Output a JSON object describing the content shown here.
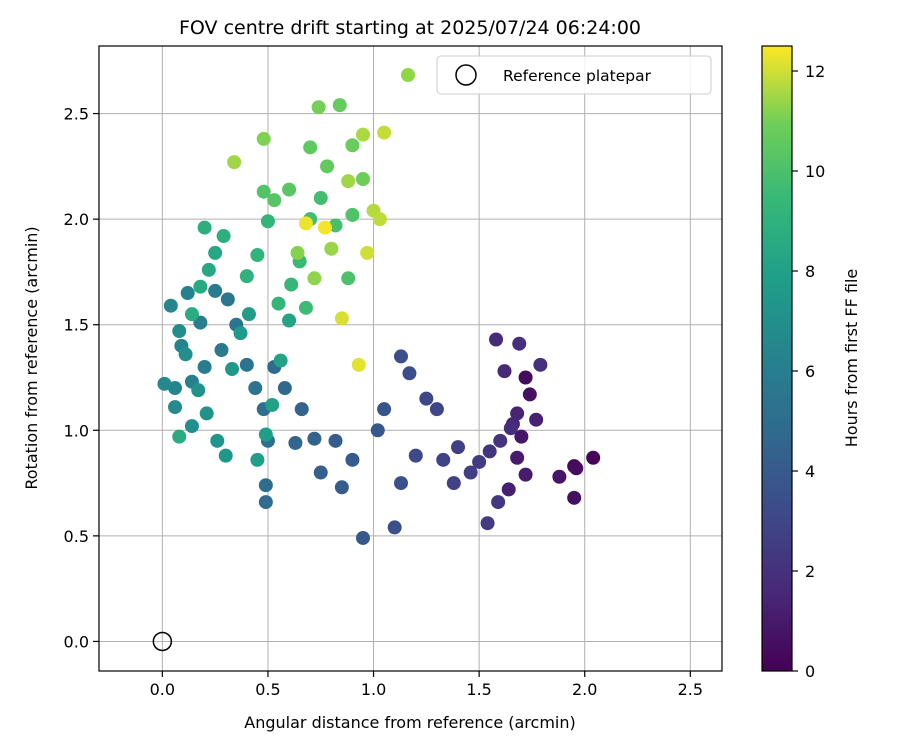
{
  "chart_data": {
    "type": "scatter",
    "title": "FOV centre drift starting at 2025/07/24 06:24:00",
    "xlabel": "Angular distance from reference (arcmin)",
    "ylabel": "Rotation from reference (arcmin)",
    "xlim": [
      -0.3,
      2.65
    ],
    "ylim": [
      -0.14,
      2.82
    ],
    "x_ticks": [
      "0.0",
      "0.5",
      "1.0",
      "1.5",
      "2.0",
      "2.5"
    ],
    "y_ticks": [
      "0.0",
      "0.5",
      "1.0",
      "1.5",
      "2.0",
      "2.5"
    ],
    "grid": true,
    "legend": {
      "placement": "top-right",
      "entries": [
        {
          "label": "",
          "marker": "filled-circle",
          "color": "#8fd744"
        },
        {
          "label": "Reference platepar",
          "marker": "open-circle",
          "color": "#000000"
        }
      ]
    },
    "colorbar": {
      "label": "Hours from first FF file",
      "colormap": "viridis",
      "range": [
        0,
        12.5
      ],
      "ticks": [
        "0",
        "2",
        "4",
        "6",
        "8",
        "10",
        "12"
      ]
    },
    "reference_point": {
      "x": 0.0,
      "y": 0.0
    },
    "series": [
      {
        "color_by": "hours",
        "points": [
          [
            2.04,
            0.87,
            0.2
          ],
          [
            1.95,
            0.83,
            0.3
          ],
          [
            1.96,
            0.82,
            0.5
          ],
          [
            1.95,
            0.68,
            0.6
          ],
          [
            1.88,
            0.78,
            0.8
          ],
          [
            1.72,
            1.25,
            0.4
          ],
          [
            1.74,
            1.17,
            0.7
          ],
          [
            1.7,
            0.97,
            0.9
          ],
          [
            1.68,
            0.87,
            1.0
          ],
          [
            1.72,
            0.79,
            1.1
          ],
          [
            1.64,
            0.72,
            1.2
          ],
          [
            1.77,
            1.05,
            1.3
          ],
          [
            1.68,
            1.08,
            1.4
          ],
          [
            1.66,
            1.03,
            1.5
          ],
          [
            1.62,
            1.28,
            1.6
          ],
          [
            1.58,
            1.43,
            1.7
          ],
          [
            1.65,
            1.01,
            1.8
          ],
          [
            1.69,
            1.41,
            1.9
          ],
          [
            1.79,
            1.31,
            2.0
          ],
          [
            1.6,
            0.95,
            2.1
          ],
          [
            1.55,
            0.9,
            2.2
          ],
          [
            1.59,
            0.66,
            2.3
          ],
          [
            1.54,
            0.56,
            2.4
          ],
          [
            1.5,
            0.85,
            2.5
          ],
          [
            1.46,
            0.8,
            2.6
          ],
          [
            1.4,
            0.92,
            2.7
          ],
          [
            1.38,
            0.75,
            2.8
          ],
          [
            1.33,
            0.86,
            2.9
          ],
          [
            1.3,
            1.1,
            3.0
          ],
          [
            1.25,
            1.15,
            3.1
          ],
          [
            1.2,
            0.88,
            3.2
          ],
          [
            1.17,
            1.27,
            3.3
          ],
          [
            1.13,
            1.35,
            3.4
          ],
          [
            1.1,
            0.54,
            3.5
          ],
          [
            1.13,
            0.75,
            3.6
          ],
          [
            1.05,
            1.1,
            3.7
          ],
          [
            1.02,
            1.0,
            3.8
          ],
          [
            0.95,
            0.49,
            3.9
          ],
          [
            0.9,
            0.86,
            4.0
          ],
          [
            0.85,
            0.73,
            4.1
          ],
          [
            0.82,
            0.95,
            4.2
          ],
          [
            0.75,
            0.8,
            4.3
          ],
          [
            0.72,
            0.96,
            4.4
          ],
          [
            0.66,
            1.1,
            4.5
          ],
          [
            0.63,
            0.94,
            4.6
          ],
          [
            0.58,
            1.2,
            4.7
          ],
          [
            0.53,
            1.3,
            4.8
          ],
          [
            0.49,
            0.66,
            4.9
          ],
          [
            0.49,
            0.74,
            5.0
          ],
          [
            0.5,
            0.95,
            5.1
          ],
          [
            0.48,
            1.1,
            5.2
          ],
          [
            0.44,
            1.2,
            5.3
          ],
          [
            0.4,
            1.31,
            5.4
          ],
          [
            0.35,
            1.5,
            5.5
          ],
          [
            0.31,
            1.62,
            5.6
          ],
          [
            0.28,
            1.38,
            5.7
          ],
          [
            0.25,
            1.66,
            5.8
          ],
          [
            0.2,
            1.3,
            5.9
          ],
          [
            0.18,
            1.51,
            6.0
          ],
          [
            0.14,
            1.23,
            6.1
          ],
          [
            0.12,
            1.65,
            6.2
          ],
          [
            0.09,
            1.4,
            6.3
          ],
          [
            0.06,
            1.2,
            6.4
          ],
          [
            0.04,
            1.59,
            6.5
          ],
          [
            0.01,
            1.22,
            6.6
          ],
          [
            0.06,
            1.11,
            6.7
          ],
          [
            0.08,
            1.47,
            6.8
          ],
          [
            0.11,
            1.36,
            6.9
          ],
          [
            0.14,
            1.02,
            7.0
          ],
          [
            0.17,
            1.19,
            7.1
          ],
          [
            0.21,
            1.08,
            7.2
          ],
          [
            0.26,
            0.95,
            7.3
          ],
          [
            0.3,
            0.88,
            7.4
          ],
          [
            0.33,
            1.29,
            7.5
          ],
          [
            0.37,
            1.46,
            7.6
          ],
          [
            0.41,
            1.55,
            7.7
          ],
          [
            0.45,
            0.86,
            7.8
          ],
          [
            0.49,
            0.98,
            7.9
          ],
          [
            0.52,
            1.12,
            8.0
          ],
          [
            0.56,
            1.33,
            8.1
          ],
          [
            0.6,
            1.52,
            8.2
          ],
          [
            0.25,
            1.84,
            8.3
          ],
          [
            0.22,
            1.76,
            8.4
          ],
          [
            0.18,
            1.68,
            8.5
          ],
          [
            0.14,
            1.55,
            8.6
          ],
          [
            0.08,
            0.97,
            8.7
          ],
          [
            0.2,
            1.96,
            8.8
          ],
          [
            0.29,
            1.92,
            8.9
          ],
          [
            0.4,
            1.73,
            9.0
          ],
          [
            0.45,
            1.83,
            9.1
          ],
          [
            0.5,
            1.99,
            9.2
          ],
          [
            0.55,
            1.6,
            9.3
          ],
          [
            0.61,
            1.69,
            9.4
          ],
          [
            0.65,
            1.8,
            9.5
          ],
          [
            0.68,
            1.58,
            9.6
          ],
          [
            0.7,
            2.0,
            9.7
          ],
          [
            0.75,
            2.1,
            9.8
          ],
          [
            0.82,
            1.97,
            9.9
          ],
          [
            0.88,
            1.72,
            10.0
          ],
          [
            0.9,
            2.02,
            10.1
          ],
          [
            0.48,
            2.13,
            10.2
          ],
          [
            0.53,
            2.09,
            10.3
          ],
          [
            0.6,
            2.14,
            10.4
          ],
          [
            0.7,
            2.34,
            10.5
          ],
          [
            0.78,
            2.25,
            10.6
          ],
          [
            0.84,
            2.54,
            10.7
          ],
          [
            0.9,
            2.35,
            10.8
          ],
          [
            0.95,
            2.19,
            10.9
          ],
          [
            0.74,
            2.53,
            11.0
          ],
          [
            0.48,
            2.38,
            11.1
          ],
          [
            0.64,
            1.84,
            11.2
          ],
          [
            0.72,
            1.72,
            11.3
          ],
          [
            0.8,
            1.86,
            11.4
          ],
          [
            0.88,
            2.18,
            11.5
          ],
          [
            0.95,
            2.4,
            11.6
          ],
          [
            1.0,
            2.04,
            11.7
          ],
          [
            1.03,
            2.0,
            11.8
          ],
          [
            1.05,
            2.41,
            11.9
          ],
          [
            0.97,
            1.84,
            12.0
          ],
          [
            0.85,
            1.53,
            12.1
          ],
          [
            0.93,
            1.31,
            12.2
          ],
          [
            0.68,
            1.98,
            12.3
          ],
          [
            0.77,
            1.96,
            12.4
          ],
          [
            0.34,
            2.27,
            11.5
          ]
        ]
      }
    ]
  }
}
